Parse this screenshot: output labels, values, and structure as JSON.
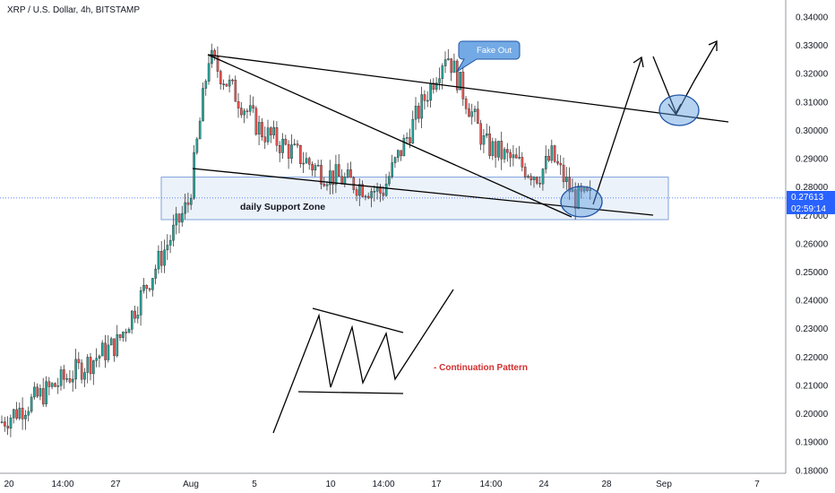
{
  "chart_data": {
    "type": "candlestick",
    "title": "XRP / U.S. Dollar, 4h, BITSTAMP",
    "ylim": [
      0.175,
      0.345
    ],
    "y_ticks": [
      "0.34000",
      "0.33000",
      "0.32000",
      "0.31000",
      "0.30000",
      "0.29000",
      "0.28000",
      "0.27000",
      "0.26000",
      "0.25000",
      "0.24000",
      "0.23000",
      "0.22000",
      "0.21000",
      "0.20000",
      "0.19000",
      "0.18000"
    ],
    "x_ticks": [
      "20",
      "14:00",
      "27",
      "Aug",
      "5",
      "10",
      "14:00",
      "17",
      "14:00",
      "24",
      "28",
      "Sep",
      "7"
    ],
    "last_price": "0.27613",
    "countdown": "02:59:14",
    "up_color": "#26a69a",
    "down_color": "#ef5350",
    "annotations": {
      "support_zone": "daily Support Zone",
      "fake_out": "Fake Out",
      "pattern": "- Continuation Pattern"
    },
    "support_zone_range": [
      0.2685,
      0.2835
    ],
    "key_prices": [
      {
        "date": "Jul 18",
        "price": 0.197
      },
      {
        "date": "Jul 27",
        "price": 0.225
      },
      {
        "date": "Aug 1",
        "price": 0.275
      },
      {
        "date": "Aug 2",
        "price": 0.326
      },
      {
        "date": "Aug 5",
        "price": 0.3
      },
      {
        "date": "Aug 10",
        "price": 0.285
      },
      {
        "date": "Aug 13",
        "price": 0.278
      },
      {
        "date": "Aug 17",
        "price": 0.328
      },
      {
        "date": "Aug 20",
        "price": 0.295
      },
      {
        "date": "Aug 23",
        "price": 0.284
      },
      {
        "date": "Aug 25",
        "price": 0.291
      },
      {
        "date": "Aug 26",
        "price": 0.276
      }
    ]
  }
}
